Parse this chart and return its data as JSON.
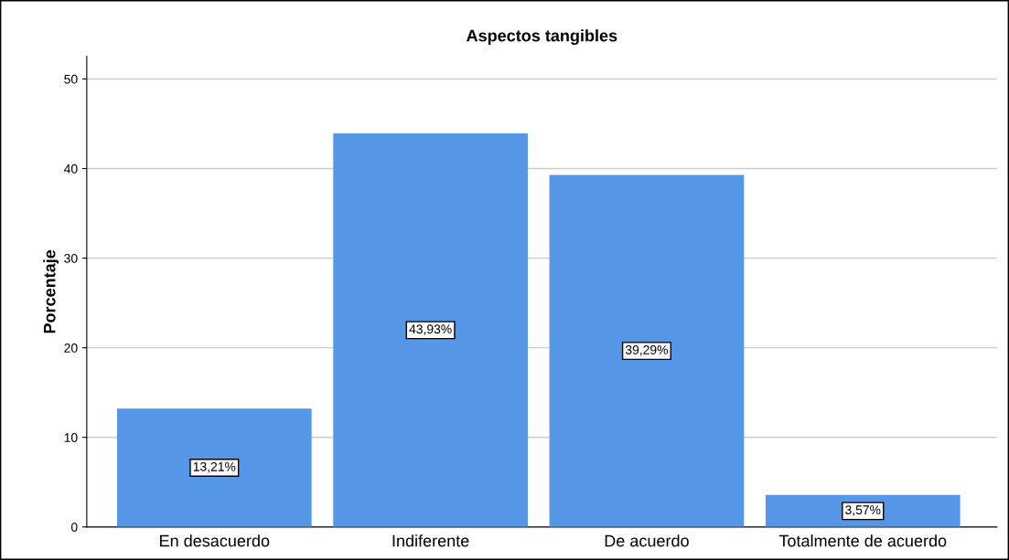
{
  "chart_data": {
    "type": "bar",
    "title": "Aspectos tangibles",
    "ylabel": "Porcentaje",
    "categories": [
      "En desacuerdo",
      "Indiferente",
      "De acuerdo",
      "Totalmente de acuerdo"
    ],
    "values": [
      13.21,
      43.93,
      39.29,
      3.57
    ],
    "value_labels": [
      "13,21%",
      "43,93%",
      "39,29%",
      "3,57%"
    ],
    "color": "#5596e6",
    "ylim": [
      0,
      52.5
    ],
    "yticks": [
      0,
      10,
      20,
      30,
      40,
      50
    ],
    "grid": "y",
    "legend": false
  }
}
